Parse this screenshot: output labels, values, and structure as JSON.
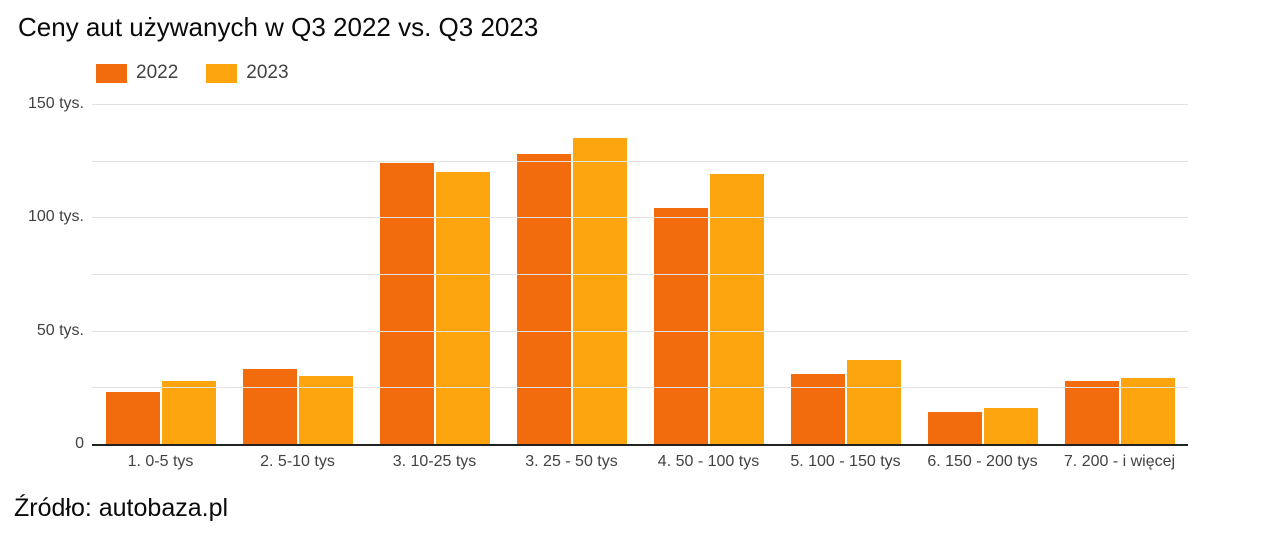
{
  "page": {
    "source": "Źródło: autobaza.pl"
  },
  "colors": {
    "series_2022": "#F26C0E",
    "series_2023": "#FCA50F",
    "gridline": "#e2e2e2",
    "axis_line": "#212121",
    "label_text": "#424242",
    "title_text": "#0a0a0a"
  },
  "chart_data": {
    "type": "bar",
    "title": "Ceny aut używanych w Q3 2022 vs. Q3 2023",
    "xlabel": "",
    "ylabel": "",
    "categories": [
      "1. 0-5 tys",
      "2. 5-10 tys",
      "3. 10-25 tys",
      "3. 25 - 50 tys",
      "4. 50 - 100 tys",
      "5. 100 - 150 tys",
      "6. 150 - 200 tys",
      "7. 200 - i więcej"
    ],
    "series": [
      {
        "name": "2022",
        "color": "#F26C0E",
        "values": [
          23,
          33,
          124,
          128,
          104,
          31,
          14,
          28
        ]
      },
      {
        "name": "2023",
        "color": "#FCA50F",
        "values": [
          28,
          30,
          120,
          135,
          119,
          37,
          16,
          29
        ]
      }
    ],
    "ylim": [
      0,
      150
    ],
    "yticks": [
      {
        "value": 0,
        "label": "0"
      },
      {
        "value": 50,
        "label": "50 tys."
      },
      {
        "value": 100,
        "label": "100 tys."
      },
      {
        "value": 150,
        "label": "150 tys."
      }
    ],
    "gridline_values": [
      25,
      50,
      75,
      100,
      125,
      150
    ],
    "grid": true,
    "legend_position": "top-left"
  }
}
